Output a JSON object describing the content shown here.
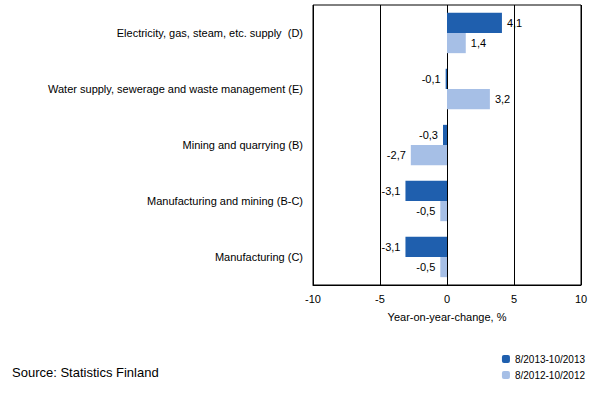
{
  "chart_data": {
    "type": "bar",
    "orientation": "horizontal",
    "categories": [
      "Electricity, gas, steam, etc. supply  (D)",
      "Water supply, sewerage and waste management (E)",
      "Mining and quarrying (B)",
      "Manufacturing and mining (B-C)",
      "Manufacturing (C)"
    ],
    "series": [
      {
        "name": "8/2013-10/2013",
        "color": "#1f5fae",
        "values": [
          4.1,
          -0.1,
          -0.3,
          -3.1,
          -3.1
        ],
        "value_labels": [
          "4,1",
          "-0,1",
          "-0,3",
          "-3,1",
          "-3,1"
        ]
      },
      {
        "name": "8/2012-10/2012",
        "color": "#a6bfe6",
        "values": [
          1.4,
          3.2,
          -2.7,
          -0.5,
          -0.5
        ],
        "value_labels": [
          "1,4",
          "3,2",
          "-2,7",
          "-0,5",
          "-0,5"
        ]
      }
    ],
    "x_label": "Year-on-year-change, %",
    "xlim": [
      -10,
      10
    ],
    "xticks": [
      -10,
      -5,
      0,
      5,
      10
    ],
    "grid": true,
    "legend": "bottom right",
    "data_labels": true,
    "annotations": [
      "Source: Statistics Finland"
    ]
  }
}
